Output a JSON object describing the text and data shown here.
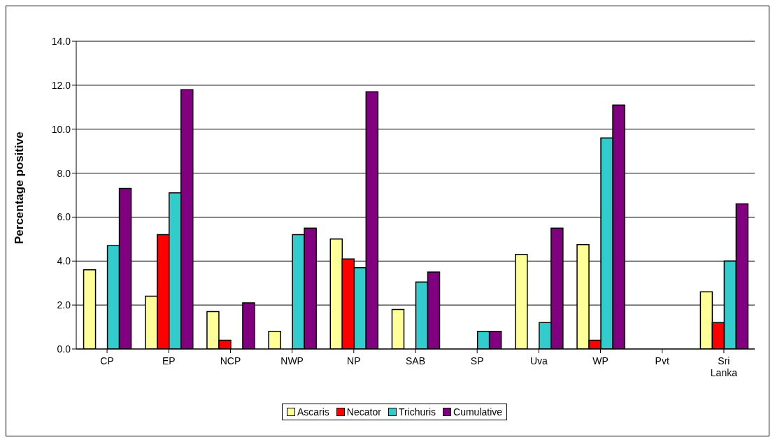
{
  "chart_data": {
    "type": "bar",
    "ylabel": "Percentage positive",
    "categories": [
      "CP",
      "EP",
      "NCP",
      "NWP",
      "NP",
      "SAB",
      "SP",
      "Uva",
      "WP",
      "Pvt",
      "Sri Lanka"
    ],
    "series": [
      {
        "name": "Ascaris",
        "color": "#ffff99",
        "values": [
          3.6,
          2.4,
          1.7,
          0.8,
          5.0,
          1.8,
          0,
          4.3,
          4.75,
          0,
          2.6
        ]
      },
      {
        "name": "Necator",
        "color": "#ff0000",
        "values": [
          0,
          5.2,
          0.4,
          0,
          4.1,
          0,
          0,
          0,
          0.4,
          0,
          1.2
        ]
      },
      {
        "name": "Trichuris",
        "color": "#33cccc",
        "values": [
          4.7,
          7.1,
          0,
          5.2,
          3.7,
          3.05,
          0.8,
          1.2,
          9.6,
          0,
          4.0
        ]
      },
      {
        "name": "Cumulative",
        "color": "#800080",
        "values": [
          7.3,
          11.8,
          2.1,
          5.5,
          11.7,
          3.5,
          0.8,
          5.5,
          11.1,
          0,
          6.6
        ]
      }
    ],
    "ylim": [
      0,
      14
    ],
    "yticks": [
      {
        "value": 0,
        "label": "0.0"
      },
      {
        "value": 2,
        "label": "2.0"
      },
      {
        "value": 4,
        "label": "4.0"
      },
      {
        "value": 6,
        "label": "6.0"
      },
      {
        "value": 8,
        "label": "8.0"
      },
      {
        "value": 10,
        "label": "10.0"
      },
      {
        "value": 12,
        "label": "12.0"
      },
      {
        "value": 14,
        "label": "14.0"
      }
    ],
    "grid": "y",
    "legend": "bottom"
  }
}
